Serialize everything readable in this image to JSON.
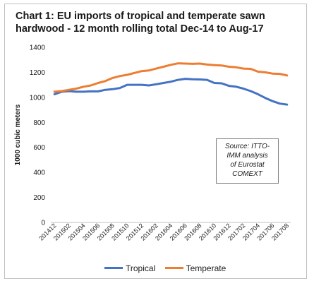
{
  "chart_data": {
    "type": "line",
    "title_lines": [
      "Chart 1: EU imports of tropical and temperate sawn",
      "hardwood - 12 month rolling total Dec-14 to Aug-17"
    ],
    "ylabel": "1000 cubic meters",
    "xlabel": "",
    "ylim": [
      0,
      1400
    ],
    "yticks": [
      "0",
      "200",
      "400",
      "600",
      "800",
      "1000",
      "1200",
      "1400"
    ],
    "x": [
      "201412",
      "201501",
      "201502",
      "201503",
      "201504",
      "201505",
      "201506",
      "201507",
      "201508",
      "201509",
      "201510",
      "201511",
      "201512",
      "201601",
      "201602",
      "201603",
      "201604",
      "201605",
      "201606",
      "201607",
      "201608",
      "201609",
      "201610",
      "201611",
      "201612",
      "201701",
      "201702",
      "201703",
      "201704",
      "201705",
      "201706",
      "201707",
      "201708"
    ],
    "xtick_labels": [
      "201412",
      "201502",
      "201504",
      "201506",
      "201508",
      "201510",
      "201512",
      "201602",
      "201604",
      "201606",
      "201608",
      "201610",
      "201612",
      "201702",
      "201704",
      "201706",
      "201708"
    ],
    "grid": false,
    "legend_position": "bottom",
    "series": [
      {
        "name": "Tropical",
        "color": "#4472c4",
        "values": [
          1025,
          1045,
          1050,
          1045,
          1045,
          1048,
          1048,
          1060,
          1065,
          1075,
          1100,
          1100,
          1100,
          1095,
          1105,
          1115,
          1125,
          1140,
          1148,
          1145,
          1143,
          1140,
          1115,
          1112,
          1092,
          1085,
          1070,
          1050,
          1025,
          995,
          970,
          950,
          942
        ]
      },
      {
        "name": "Temperate",
        "color": "#ed7d31",
        "values": [
          1045,
          1050,
          1060,
          1070,
          1085,
          1095,
          1115,
          1130,
          1155,
          1170,
          1180,
          1195,
          1210,
          1215,
          1230,
          1245,
          1260,
          1272,
          1270,
          1268,
          1270,
          1262,
          1258,
          1255,
          1245,
          1240,
          1230,
          1228,
          1205,
          1200,
          1190,
          1188,
          1175
        ]
      }
    ]
  },
  "annotation": {
    "lines": [
      "Source: ITTO-",
      "IMM analysis",
      "of Eurostat",
      "COMEXT"
    ]
  }
}
